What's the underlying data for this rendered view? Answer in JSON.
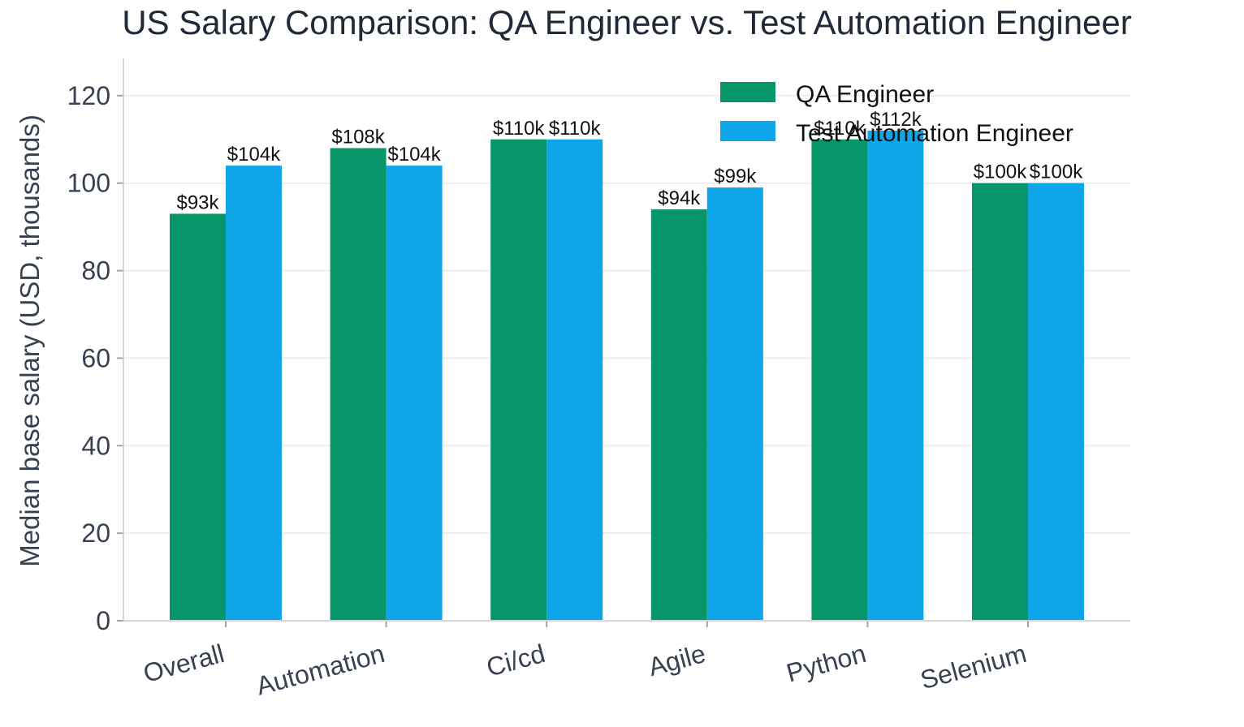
{
  "chart_data": {
    "type": "bar",
    "title": "US Salary Comparison: QA Engineer vs. Test Automation Engineer",
    "y_label": "Median base salary (USD, thousands)",
    "categories": [
      "Overall",
      "Automation",
      "Ci/cd",
      "Agile",
      "Python",
      "Selenium"
    ],
    "series": [
      {
        "name": "QA Engineer",
        "color": "#079669",
        "values": [
          93,
          108,
          110,
          94,
          110,
          100
        ],
        "value_labels": [
          "$93k",
          "$108k",
          "$110k",
          "$94k",
          "$110k",
          "$100k"
        ]
      },
      {
        "name": "Test Automation Engineer",
        "color": "#0ea5e9",
        "values": [
          104,
          104,
          110,
          99,
          112,
          100
        ],
        "value_labels": [
          "$104k",
          "$104k",
          "$110k",
          "$99k",
          "$112k",
          "$100k"
        ]
      }
    ],
    "ylim": [
      0,
      128.5
    ],
    "yticks": [
      0,
      20,
      40,
      60,
      80,
      100,
      120
    ],
    "grid": true,
    "legend": "upper-right"
  }
}
